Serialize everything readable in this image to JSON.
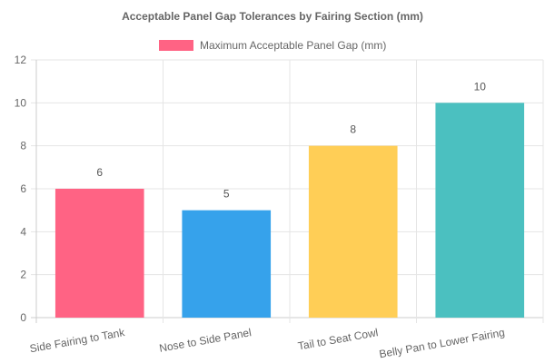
{
  "chart_data": {
    "type": "bar",
    "title": "Acceptable Panel Gap Tolerances by Fairing Section (mm)",
    "xlabel": "",
    "ylabel": "",
    "categories": [
      "Side Fairing to Tank",
      "Nose to Side Panel",
      "Tail to Seat Cowl",
      "Belly Pan to Lower Fairing"
    ],
    "series": [
      {
        "name": "Maximum Acceptable Panel Gap (mm)",
        "values": [
          6,
          5,
          8,
          10
        ]
      }
    ],
    "bar_colors": [
      "#ff6384",
      "#36a2eb",
      "#ffce56",
      "#4bc0c0"
    ],
    "legend_color": "#ff6384",
    "ylim": [
      0,
      12
    ],
    "yticks": [
      0,
      2,
      4,
      6,
      8,
      10,
      12
    ],
    "grid": true,
    "legend_position": "top",
    "data_labels": true
  }
}
